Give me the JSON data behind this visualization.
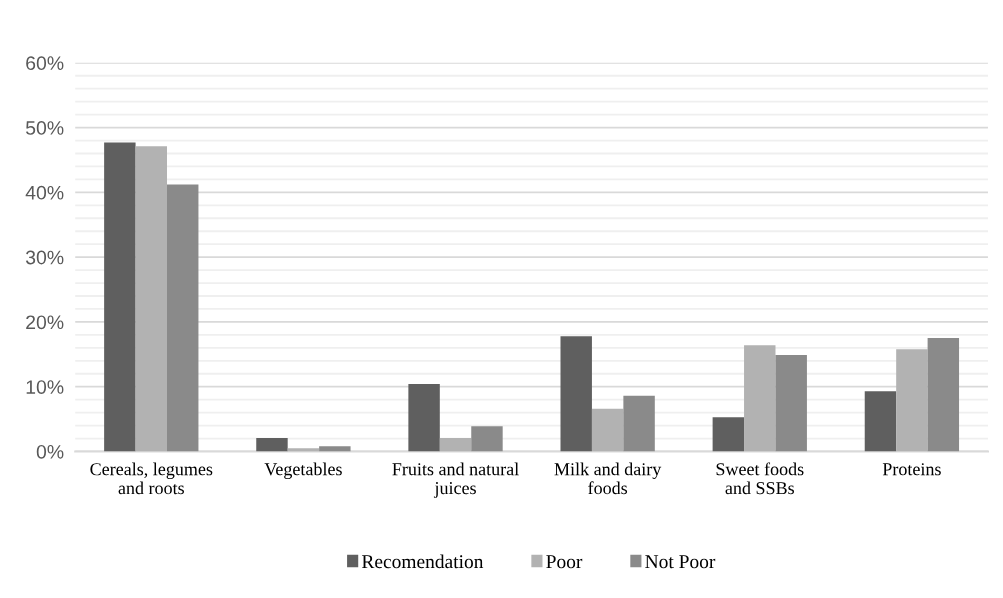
{
  "chart_data": {
    "type": "bar",
    "categories": [
      "Cereals, legumes\nand roots",
      "Vegetables",
      "Fruits and natural\njuices",
      "Milk and dairy\nfoods",
      "Sweet foods\nand SSBs",
      "Proteins"
    ],
    "series": [
      {
        "name": "Recomendation",
        "color": "#5f5f5f",
        "values": [
          47.7,
          2.1,
          10.4,
          17.8,
          5.3,
          9.3
        ]
      },
      {
        "name": "Poor",
        "color": "#b2b2b2",
        "values": [
          47.1,
          0.5,
          2.1,
          6.6,
          16.4,
          15.8
        ]
      },
      {
        "name": "Not Poor",
        "color": "#8a8a8a",
        "values": [
          41.2,
          0.8,
          3.9,
          8.6,
          14.9,
          17.5
        ]
      }
    ],
    "ylim": [
      0,
      60
    ],
    "yticks": [
      {
        "value": 0,
        "label": "0%"
      },
      {
        "value": 2,
        "label": null
      },
      {
        "value": 4,
        "label": null
      },
      {
        "value": 6,
        "label": null
      },
      {
        "value": 8,
        "label": null
      },
      {
        "value": 10,
        "label": "10%"
      },
      {
        "value": 12,
        "label": null
      },
      {
        "value": 14,
        "label": null
      },
      {
        "value": 16,
        "label": null
      },
      {
        "value": 18,
        "label": null
      },
      {
        "value": 20,
        "label": "20%"
      },
      {
        "value": 22,
        "label": null
      },
      {
        "value": 24,
        "label": null
      },
      {
        "value": 26,
        "label": null
      },
      {
        "value": 28,
        "label": null
      },
      {
        "value": 30,
        "label": "30%"
      },
      {
        "value": 32,
        "label": null
      },
      {
        "value": 34,
        "label": null
      },
      {
        "value": 36,
        "label": null
      },
      {
        "value": 38,
        "label": null
      },
      {
        "value": 40,
        "label": "40%"
      },
      {
        "value": 42,
        "label": null
      },
      {
        "value": 44,
        "label": null
      },
      {
        "value": 46,
        "label": null
      },
      {
        "value": 48,
        "label": null
      },
      {
        "value": 50,
        "label": "50%"
      },
      {
        "value": 52,
        "label": null
      },
      {
        "value": 54,
        "label": null
      },
      {
        "value": 56,
        "label": null
      },
      {
        "value": 58,
        "label": null
      },
      {
        "value": 60,
        "label": "60%"
      }
    ],
    "grid": "y",
    "legend": "bottom"
  }
}
